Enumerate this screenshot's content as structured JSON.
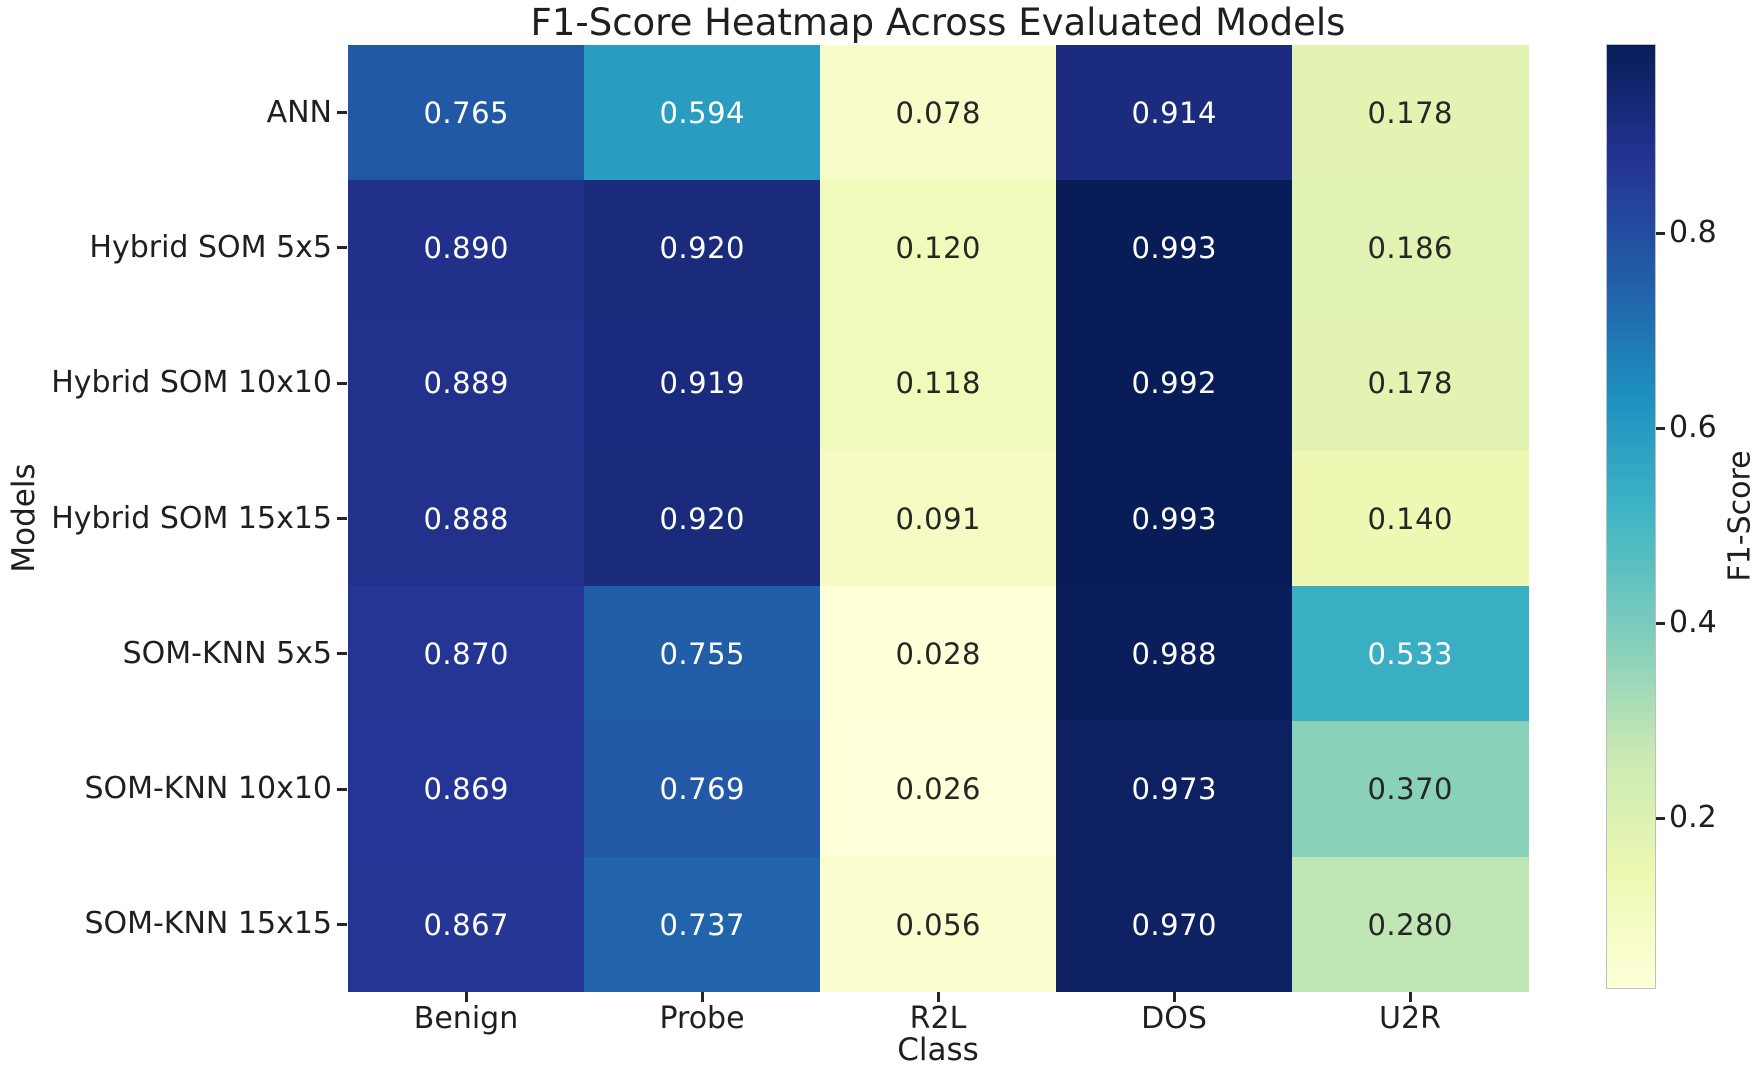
{
  "chart_data": {
    "type": "heatmap",
    "title": "F1-Score Heatmap Across Evaluated Models",
    "xlabel": "Class",
    "ylabel": "Models",
    "x_categories": [
      "Benign",
      "Probe",
      "R2L",
      "DOS",
      "U2R"
    ],
    "y_categories": [
      "ANN",
      "Hybrid SOM 5x5",
      "Hybrid SOM 10x10",
      "Hybrid SOM 15x15",
      "SOM-KNN 5x5",
      "SOM-KNN 10x10",
      "SOM-KNN 15x15"
    ],
    "values": [
      [
        0.765,
        0.594,
        0.078,
        0.914,
        0.178
      ],
      [
        0.89,
        0.92,
        0.12,
        0.993,
        0.186
      ],
      [
        0.889,
        0.919,
        0.118,
        0.992,
        0.178
      ],
      [
        0.888,
        0.92,
        0.091,
        0.993,
        0.14
      ],
      [
        0.87,
        0.755,
        0.028,
        0.988,
        0.533
      ],
      [
        0.869,
        0.769,
        0.026,
        0.973,
        0.37
      ],
      [
        0.867,
        0.737,
        0.056,
        0.97,
        0.28
      ]
    ],
    "value_format_decimals": 3,
    "colormap": "YlGnBu",
    "vmin": 0.026,
    "vmax": 0.993,
    "grid": false,
    "legend": "none",
    "colorbar": {
      "label": "F1-Score",
      "ticks": [
        0.8,
        0.6,
        0.4,
        0.2
      ],
      "position": "right"
    },
    "annotation_text_colors": {
      "dark": "#262626",
      "light": "#ffffff"
    }
  }
}
